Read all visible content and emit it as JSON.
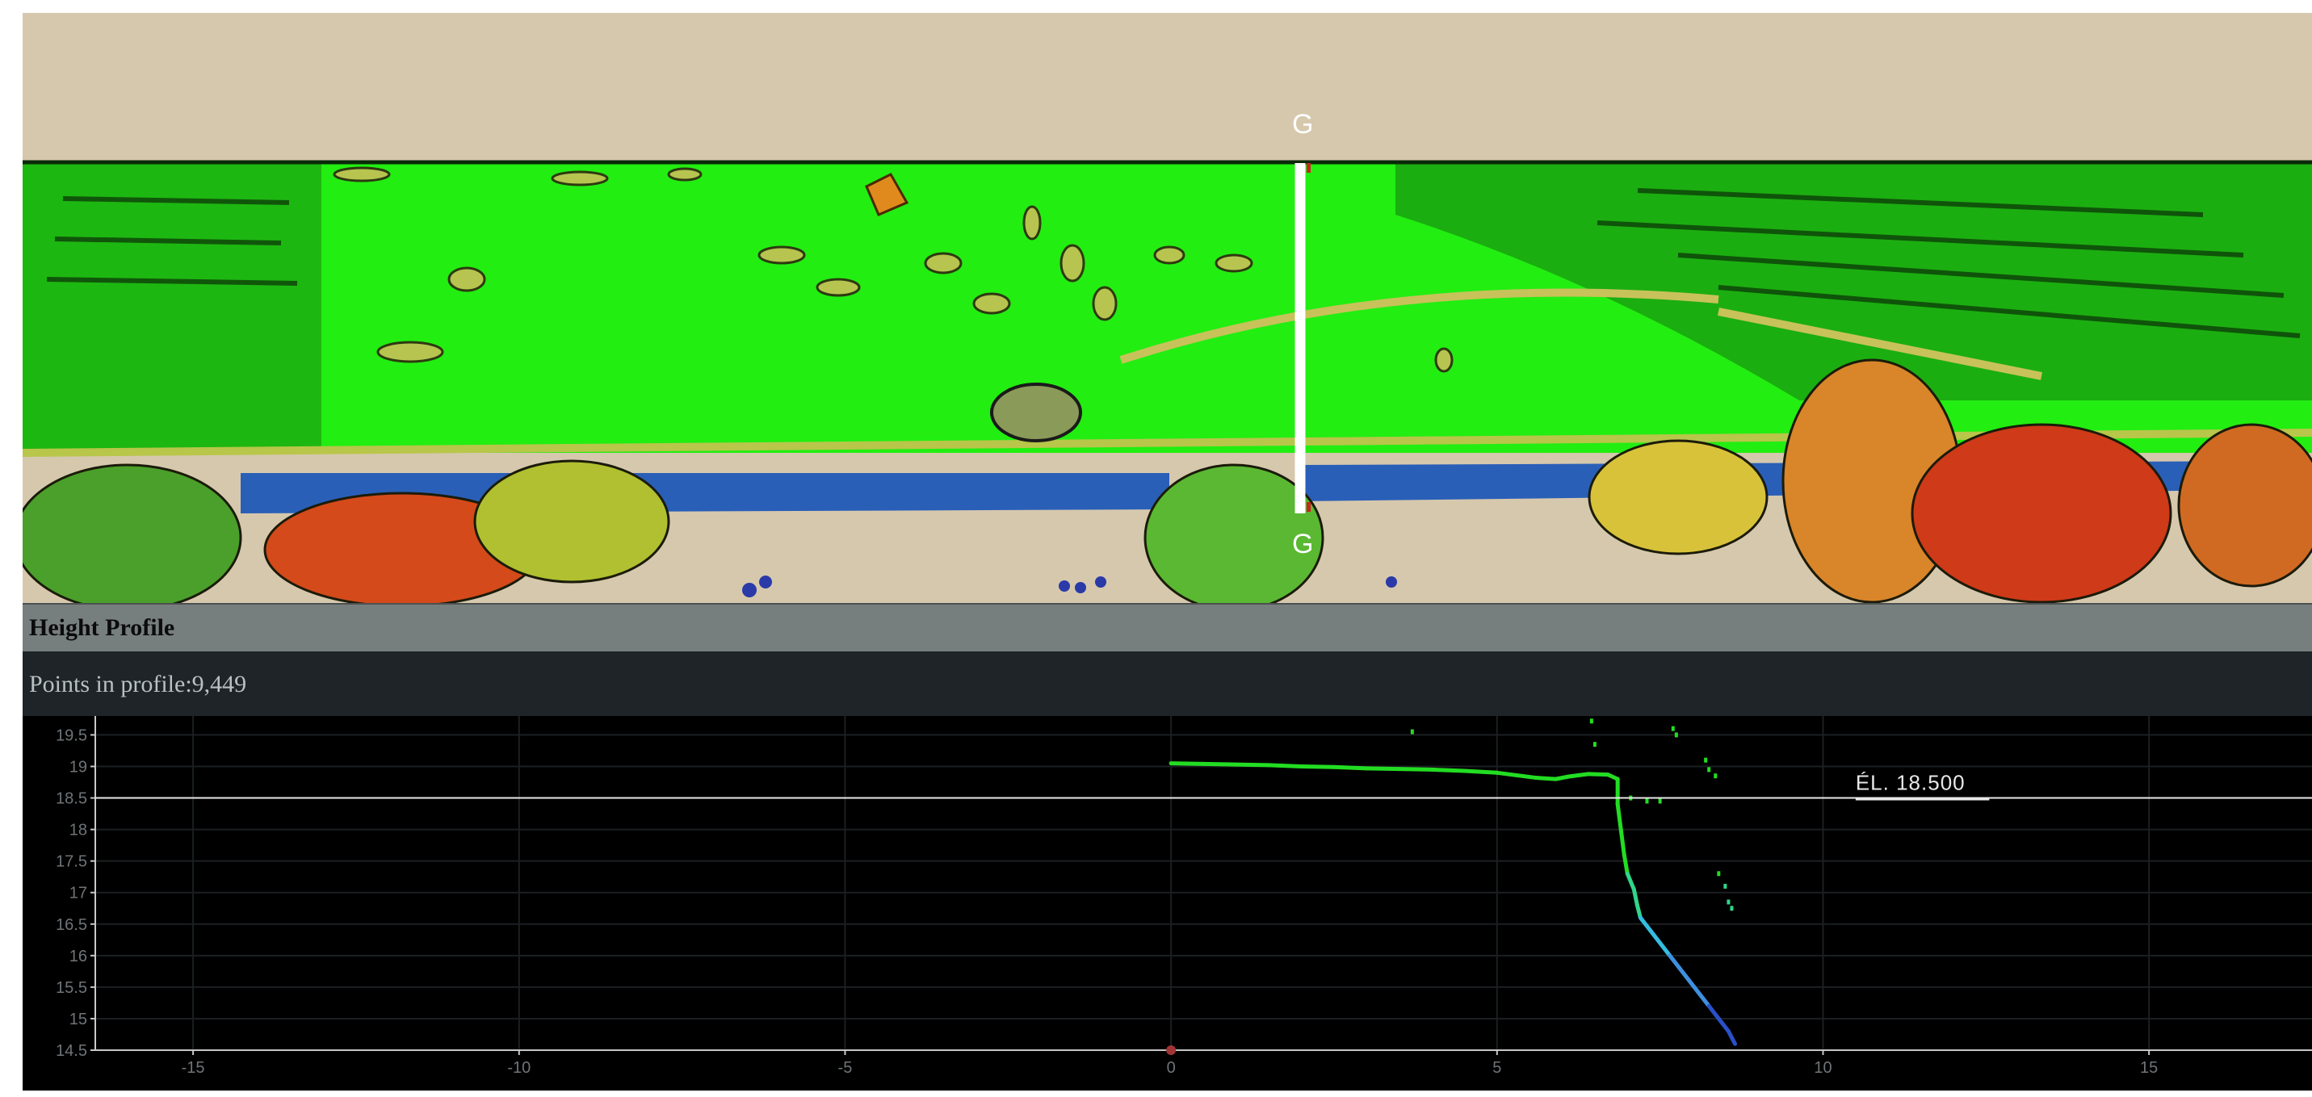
{
  "viewport": {
    "section_label_top": "G",
    "section_label_bottom": "G",
    "colors": {
      "background": "#d6c8ad",
      "ground": "#22ee11",
      "water": "#2a5fb8",
      "vegetation_warm": "#d44a1a",
      "vegetation_yellow": "#d8c23a",
      "section_line": "#ffffff"
    }
  },
  "profile_panel": {
    "title": "Height Profile",
    "points_label": "Points in profile:",
    "points_count": "9,449"
  },
  "chart_data": {
    "type": "scatter",
    "title": "",
    "xlabel": "",
    "ylabel": "",
    "xlim": [
      -16.5,
      17.5
    ],
    "ylim": [
      14.5,
      19.8
    ],
    "x_ticks": [
      -15,
      -10,
      -5,
      0,
      5,
      10,
      15
    ],
    "y_ticks": [
      14.5,
      15,
      15.5,
      16,
      16.5,
      17,
      17.5,
      18,
      18.5,
      19,
      19.5
    ],
    "grid": true,
    "reference_line": {
      "y": 18.5,
      "label": "ÉL. 18.500"
    },
    "origin_marker": {
      "x": 0,
      "y": 14.5
    },
    "series": [
      {
        "points": [
          [
            0.0,
            19.05
          ],
          [
            0.5,
            19.04
          ],
          [
            1.0,
            19.03
          ],
          [
            1.5,
            19.02
          ],
          [
            2.0,
            19.0
          ],
          [
            2.5,
            18.99
          ],
          [
            3.0,
            18.97
          ],
          [
            3.5,
            18.96
          ],
          [
            4.0,
            18.95
          ],
          [
            4.5,
            18.93
          ],
          [
            5.0,
            18.9
          ],
          [
            5.3,
            18.86
          ],
          [
            5.6,
            18.82
          ],
          [
            5.9,
            18.8
          ],
          [
            6.1,
            18.84
          ],
          [
            6.4,
            18.88
          ],
          [
            6.7,
            18.87
          ],
          [
            6.85,
            18.8
          ],
          [
            6.85,
            18.4
          ],
          [
            6.9,
            18.0
          ],
          [
            6.95,
            17.6
          ],
          [
            7.0,
            17.3
          ],
          [
            7.1,
            17.05
          ],
          [
            7.15,
            16.8
          ],
          [
            7.2,
            16.6
          ],
          [
            7.35,
            16.4
          ],
          [
            7.5,
            16.2
          ],
          [
            7.65,
            16.0
          ],
          [
            7.8,
            15.8
          ],
          [
            7.95,
            15.6
          ],
          [
            8.1,
            15.4
          ],
          [
            8.25,
            15.2
          ],
          [
            8.4,
            15.0
          ],
          [
            8.55,
            14.8
          ],
          [
            8.65,
            14.6
          ]
        ]
      },
      {
        "points": [
          [
            3.7,
            19.55
          ],
          [
            6.45,
            19.72
          ],
          [
            6.5,
            19.35
          ],
          [
            7.05,
            18.5
          ],
          [
            7.3,
            18.45
          ],
          [
            7.5,
            18.45
          ],
          [
            7.7,
            19.6
          ],
          [
            7.75,
            19.5
          ],
          [
            8.2,
            19.1
          ],
          [
            8.25,
            18.95
          ],
          [
            8.35,
            18.85
          ],
          [
            8.4,
            17.3
          ],
          [
            8.5,
            17.1
          ],
          [
            8.55,
            16.85
          ],
          [
            8.6,
            16.75
          ]
        ]
      }
    ]
  }
}
